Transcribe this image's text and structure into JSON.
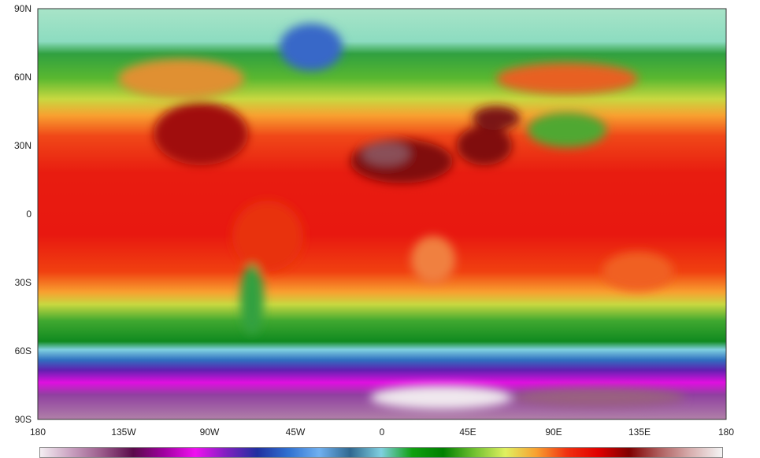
{
  "map": {
    "y_ticks": [
      "90N",
      "60N",
      "30N",
      "0",
      "30S",
      "60S",
      "90S"
    ],
    "x_ticks": [
      "180",
      "135W",
      "90W",
      "45W",
      "0",
      "45E",
      "90E",
      "135E",
      "180"
    ],
    "colorbar_colors": [
      "#f4eef2",
      "#c9a0c0",
      "#9a5a8a",
      "#5a0a4a",
      "#a000a0",
      "#f010f0",
      "#8020c0",
      "#2030a0",
      "#3070d0",
      "#70b0f0",
      "#306890",
      "#80d0e0",
      "#10a010",
      "#008000",
      "#70c030",
      "#e0f060",
      "#f8a030",
      "#f03010",
      "#e00000",
      "#800000",
      "#b06060",
      "#d8b0b0",
      "#f4f4f4"
    ]
  }
}
